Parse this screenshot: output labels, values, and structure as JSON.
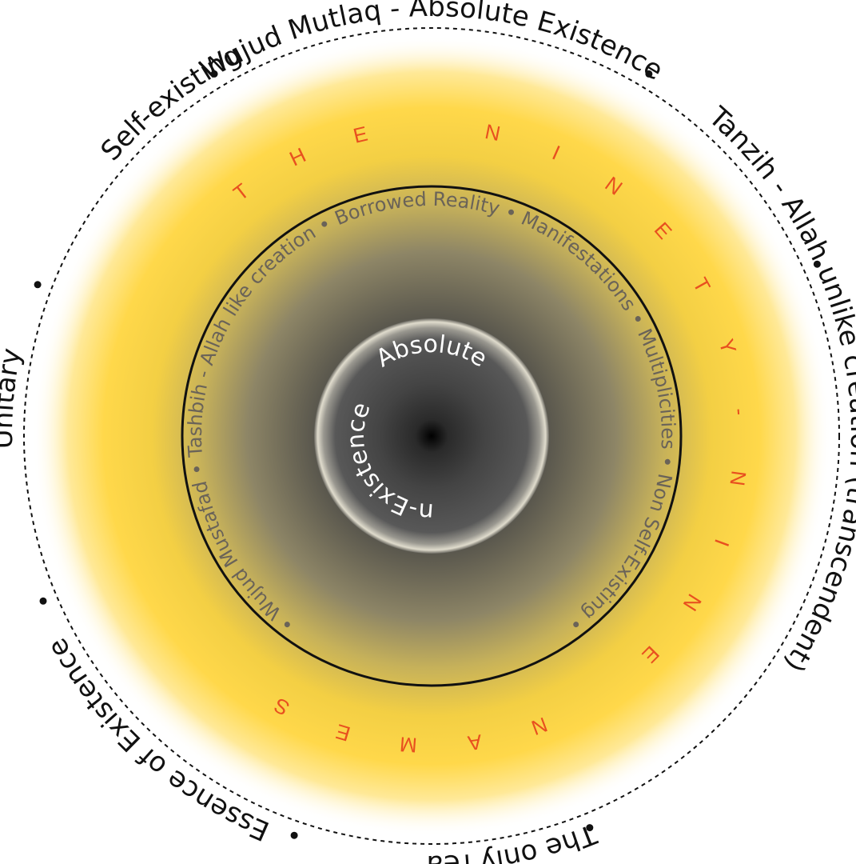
{
  "outer_ring": {
    "labels": [
      "Wujud Mutlaq - Absolute Existence",
      "Tanzih - Allah unlike creation (transcendent)",
      "The only reality",
      "Essence of Existence",
      "Unitary",
      "Self-existing"
    ]
  },
  "names_ring": {
    "text": "THE NINETY-NINE NAMES"
  },
  "inner_ring": {
    "labels": [
      "Wujud Mustafad",
      "Tashbih - Allah like creation",
      "Borrowed Reality",
      "Manifestations",
      "Multiplicities",
      "Non Self-Existing"
    ]
  },
  "core": {
    "top": "Absolute",
    "bottom": "Non-Existence"
  },
  "colors": {
    "names": "#e8501f",
    "glow": "#ffd23c",
    "core": "#3a3a3a"
  }
}
